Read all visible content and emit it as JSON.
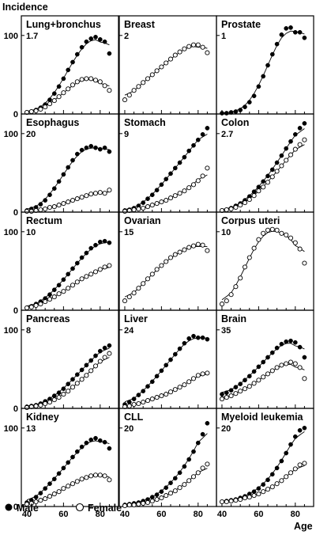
{
  "chart_data": {
    "type": "scatter",
    "ylabel": "Incidence",
    "xlabel": "Age",
    "xlim": [
      37,
      90
    ],
    "ylim": [
      0,
      125
    ],
    "x_ticks": [
      40,
      60,
      80
    ],
    "y_ticks": [
      0,
      100
    ],
    "legend": {
      "male": "Male",
      "female": "Female",
      "position": "bottom-left"
    },
    "x": [
      40,
      42.5,
      45,
      47.5,
      50,
      52.5,
      55,
      57.5,
      60,
      62.5,
      65,
      67.5,
      70,
      72.5,
      75,
      77.5,
      80,
      82.5,
      85
    ],
    "panels": [
      {
        "title": "Lung+bronchus",
        "scale": "1.7",
        "male": [
          2,
          3,
          5,
          8,
          12,
          18,
          26,
          35,
          45,
          56,
          66,
          76,
          85,
          92,
          96,
          98,
          95,
          92,
          77
        ],
        "female": [
          2,
          3,
          4,
          6,
          9,
          13,
          17,
          22,
          27,
          32,
          37,
          41,
          44,
          45,
          45,
          43,
          41,
          36,
          30
        ]
      },
      {
        "title": "Breast",
        "scale": "2",
        "female": [
          18,
          24,
          30,
          35,
          40,
          45,
          50,
          55,
          60,
          65,
          70,
          75,
          79,
          83,
          86,
          88,
          88,
          85,
          78
        ]
      },
      {
        "title": "Prostate",
        "scale": "1",
        "male": [
          1,
          1,
          2,
          3,
          5,
          9,
          15,
          23,
          35,
          48,
          62,
          76,
          89,
          101,
          109,
          110,
          104,
          104,
          97
        ]
      },
      {
        "title": "Esophagus",
        "scale": "20",
        "male": [
          2,
          4,
          6,
          10,
          15,
          22,
          30,
          39,
          48,
          57,
          66,
          74,
          79,
          82,
          84,
          82,
          80,
          82,
          77
        ],
        "female": [
          1,
          1,
          2,
          3,
          4,
          6,
          7,
          9,
          11,
          13,
          15,
          17,
          19,
          21,
          23,
          24,
          25,
          24,
          28
        ]
      },
      {
        "title": "Stomach",
        "scale": "9",
        "male": [
          2,
          3,
          5,
          8,
          12,
          17,
          22,
          28,
          35,
          42,
          49,
          56,
          63,
          70,
          78,
          85,
          92,
          99,
          107
        ],
        "female": [
          1,
          2,
          3,
          4,
          5,
          7,
          9,
          11,
          13,
          15,
          18,
          21,
          24,
          27,
          31,
          35,
          40,
          46,
          56
        ]
      },
      {
        "title": "Colon",
        "scale": "2.7",
        "male": [
          2,
          3,
          5,
          8,
          11,
          15,
          20,
          26,
          32,
          39,
          46,
          54,
          63,
          72,
          81,
          90,
          99,
          107,
          113
        ],
        "female": [
          2,
          3,
          4,
          6,
          9,
          12,
          16,
          21,
          27,
          32,
          38,
          45,
          52,
          59,
          66,
          73,
          80,
          86,
          92
        ]
      },
      {
        "title": "Rectum",
        "scale": "10",
        "male": [
          3,
          5,
          8,
          11,
          15,
          20,
          26,
          32,
          39,
          46,
          53,
          60,
          67,
          73,
          79,
          83,
          87,
          88,
          86
        ],
        "female": [
          3,
          4,
          6,
          8,
          11,
          14,
          17,
          21,
          24,
          28,
          32,
          36,
          40,
          43,
          46,
          49,
          52,
          55,
          57
        ]
      },
      {
        "title": "Ovarian",
        "scale": "15",
        "female": [
          12,
          17,
          22,
          28,
          34,
          40,
          46,
          52,
          57,
          62,
          67,
          71,
          74,
          77,
          80,
          82,
          84,
          83,
          76
        ]
      },
      {
        "title": "Corpus uteri",
        "scale": "10",
        "female": [
          8,
          12,
          20,
          30,
          41,
          55,
          67,
          79,
          90,
          98,
          102,
          103,
          102,
          98,
          96,
          92,
          86,
          78,
          60
        ]
      },
      {
        "title": "Pancreas",
        "scale": "8",
        "male": [
          2,
          3,
          4,
          6,
          9,
          12,
          16,
          20,
          25,
          31,
          37,
          43,
          49,
          55,
          61,
          67,
          73,
          77,
          80
        ],
        "female": [
          1,
          2,
          3,
          4,
          6,
          8,
          11,
          14,
          18,
          22,
          27,
          32,
          37,
          42,
          48,
          54,
          60,
          65,
          70
        ]
      },
      {
        "title": "Liver",
        "scale": "24",
        "male": [
          5,
          8,
          12,
          17,
          22,
          28,
          34,
          41,
          48,
          55,
          62,
          69,
          76,
          83,
          89,
          92,
          90,
          90,
          88
        ],
        "female": [
          2,
          3,
          5,
          6,
          8,
          10,
          12,
          14,
          16,
          18,
          21,
          24,
          27,
          30,
          34,
          38,
          42,
          44,
          45
        ]
      },
      {
        "title": "Brain",
        "scale": "35",
        "male": [
          18,
          20,
          23,
          27,
          31,
          36,
          41,
          47,
          53,
          59,
          65,
          71,
          77,
          82,
          85,
          86,
          84,
          78,
          65
        ],
        "female": [
          12,
          14,
          16,
          19,
          22,
          25,
          28,
          32,
          36,
          40,
          44,
          48,
          52,
          55,
          57,
          59,
          57,
          52,
          38
        ]
      },
      {
        "title": "Kidney",
        "scale": "13",
        "male": [
          5,
          8,
          12,
          17,
          23,
          29,
          35,
          42,
          49,
          56,
          63,
          70,
          76,
          81,
          85,
          87,
          84,
          82,
          74
        ],
        "female": [
          3,
          4,
          6,
          8,
          10,
          13,
          16,
          19,
          23,
          26,
          29,
          32,
          35,
          37,
          39,
          40,
          40,
          39,
          34
        ]
      },
      {
        "title": "CLL",
        "scale": "20",
        "male": [
          2,
          3,
          4,
          5,
          7,
          9,
          12,
          15,
          19,
          24,
          30,
          36,
          43,
          51,
          60,
          70,
          81,
          92,
          106
        ],
        "female": [
          1,
          2,
          2,
          3,
          4,
          5,
          7,
          9,
          11,
          14,
          17,
          20,
          24,
          28,
          33,
          38,
          43,
          49,
          54
        ]
      },
      {
        "title": "Myeloid leukemia",
        "scale": "20",
        "male": [
          6,
          7,
          8,
          9,
          11,
          13,
          16,
          19,
          23,
          28,
          34,
          41,
          49,
          58,
          68,
          79,
          89,
          97,
          100
        ],
        "female": [
          6,
          6,
          7,
          8,
          9,
          11,
          12,
          14,
          16,
          19,
          22,
          25,
          29,
          33,
          38,
          43,
          48,
          53,
          55
        ]
      }
    ]
  }
}
